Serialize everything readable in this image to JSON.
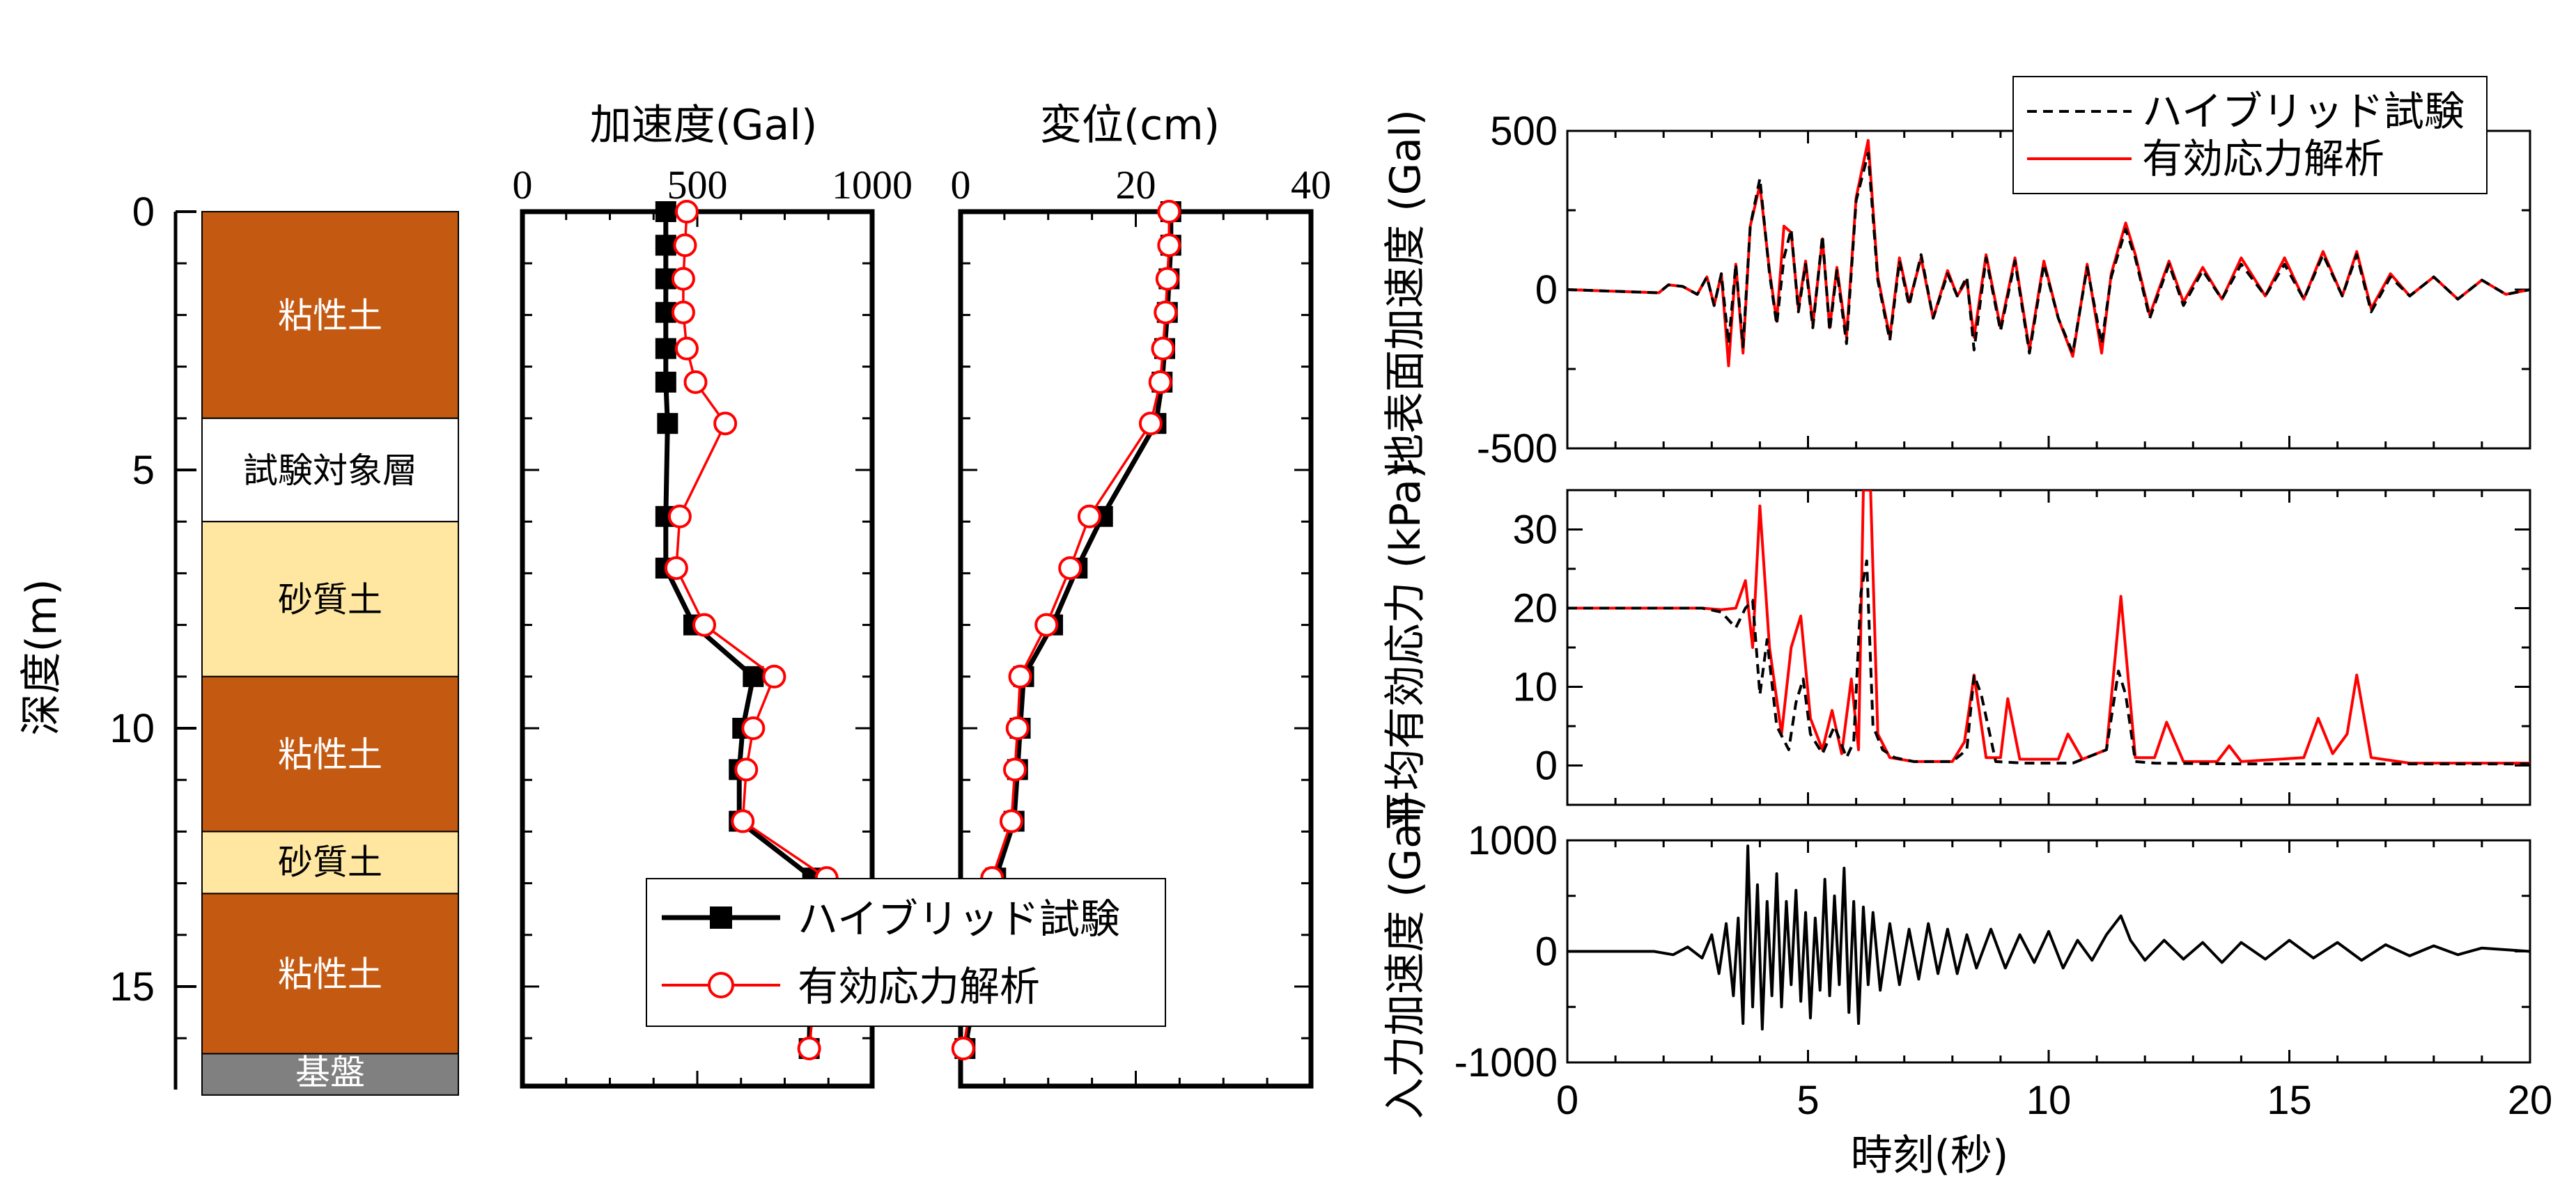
{
  "colors": {
    "hybrid": "#000000",
    "effective": "#ff0000",
    "clay": "#c45a12",
    "sand": "#ffe7a1",
    "target": "#ffffff",
    "base": "#808080"
  },
  "soil_column": {
    "depth_label": "深度(m)",
    "depth_ticks": [
      "0",
      "5",
      "10",
      "15"
    ],
    "layers": [
      {
        "name": "粘性土",
        "kind": "clay",
        "top": 0,
        "bottom": 4.0
      },
      {
        "name": "試験対象層",
        "kind": "target",
        "top": 4.0,
        "bottom": 6.0
      },
      {
        "name": "砂質土",
        "kind": "sand",
        "top": 6.0,
        "bottom": 9.0
      },
      {
        "name": "粘性土",
        "kind": "clay",
        "top": 9.0,
        "bottom": 12.0
      },
      {
        "name": "砂質土",
        "kind": "sand",
        "top": 12.0,
        "bottom": 13.2
      },
      {
        "name": "粘性土",
        "kind": "clay",
        "top": 13.2,
        "bottom": 16.3
      },
      {
        "name": "基盤",
        "kind": "base",
        "top": 16.3,
        "bottom": 17.1
      }
    ]
  },
  "legend_profile": {
    "hybrid": "ハイブリッド試験",
    "effective": "有効応力解析"
  },
  "legend_timehist": {
    "hybrid": "ハイブリッド試験",
    "effective": "有効応力解析"
  },
  "chart_data": [
    {
      "type": "line",
      "title": "加速度(Gal)",
      "xlim": [
        0,
        1000
      ],
      "xticks": [
        "0",
        "500",
        "1000"
      ],
      "ylim": [
        0,
        17
      ],
      "series": [
        {
          "name": "ハイブリッド試験",
          "x": [
            410,
            410,
            410,
            410,
            410,
            410,
            415,
            410,
            410,
            490,
            660,
            630,
            620,
            620,
            830,
            820
          ],
          "y": [
            0.0,
            0.65,
            1.3,
            1.95,
            2.65,
            3.3,
            4.1,
            5.9,
            6.9,
            8.0,
            9.0,
            10.0,
            10.8,
            11.8,
            12.9,
            16.2
          ]
        },
        {
          "name": "有効応力解析",
          "x": [
            470,
            465,
            460,
            460,
            470,
            495,
            580,
            450,
            440,
            520,
            720,
            660,
            640,
            630,
            870,
            820
          ],
          "y": [
            0.0,
            0.65,
            1.3,
            1.95,
            2.65,
            3.3,
            4.1,
            5.9,
            6.9,
            8.0,
            9.0,
            10.0,
            10.8,
            11.8,
            12.9,
            16.2
          ]
        }
      ]
    },
    {
      "type": "line",
      "title": "変位(cm)",
      "xlim": [
        0,
        40
      ],
      "xticks": [
        "0",
        "20",
        "40"
      ],
      "ylim": [
        0,
        17
      ],
      "series": [
        {
          "name": "ハイブリッド試験",
          "x": [
            24,
            24,
            23.8,
            23.6,
            23.3,
            23.0,
            22.3,
            16.2,
            13.3,
            10.5,
            7.2,
            6.8,
            6.5,
            6.1,
            4.0,
            0.5
          ],
          "y": [
            0.0,
            0.65,
            1.3,
            1.95,
            2.65,
            3.3,
            4.1,
            5.9,
            6.9,
            8.0,
            9.0,
            10.0,
            10.8,
            11.8,
            12.9,
            16.2
          ]
        },
        {
          "name": "有効応力解析",
          "x": [
            23.8,
            23.8,
            23.6,
            23.4,
            23.1,
            22.8,
            21.7,
            14.7,
            12.5,
            9.8,
            6.8,
            6.5,
            6.2,
            5.8,
            3.6,
            0.3
          ],
          "y": [
            0.0,
            0.65,
            1.3,
            1.95,
            2.65,
            3.3,
            4.1,
            5.9,
            6.9,
            8.0,
            9.0,
            10.0,
            10.8,
            11.8,
            12.9,
            16.2
          ]
        }
      ]
    },
    {
      "type": "line",
      "ylabel": "地表面加速度 (Gal)",
      "xlim": [
        0,
        20
      ],
      "ylim": [
        -500,
        500
      ],
      "yticks": [
        "500",
        "0",
        "-500"
      ],
      "series": [
        {
          "name": "ハイブリッド試験",
          "t": [
            0,
            1.9,
            2.1,
            2.4,
            2.7,
            2.9,
            3.05,
            3.2,
            3.35,
            3.5,
            3.65,
            3.8,
            4.0,
            4.2,
            4.35,
            4.5,
            4.65,
            4.8,
            4.95,
            5.1,
            5.3,
            5.45,
            5.6,
            5.8,
            6.0,
            6.25,
            6.45,
            6.7,
            6.9,
            7.1,
            7.35,
            7.6,
            7.9,
            8.1,
            8.3,
            8.45,
            8.7,
            9.0,
            9.3,
            9.6,
            9.9,
            10.2,
            10.5,
            10.8,
            11.1,
            11.3,
            11.6,
            11.8,
            12.1,
            12.5,
            12.8,
            13.2,
            13.6,
            14.0,
            14.5,
            14.9,
            15.3,
            15.7,
            16.1,
            16.4,
            16.7,
            17.1,
            17.5,
            18.0,
            18.5,
            19.0,
            19.5,
            20
          ],
          "y": [
            0,
            -10,
            15,
            10,
            -15,
            40,
            -50,
            50,
            -170,
            80,
            -180,
            200,
            350,
            50,
            -110,
            100,
            190,
            -70,
            80,
            -120,
            170,
            -130,
            60,
            -170,
            280,
            430,
            30,
            -160,
            90,
            -50,
            110,
            -90,
            50,
            -20,
            40,
            -190,
            100,
            -130,
            90,
            -200,
            80,
            -90,
            -200,
            70,
            -170,
            40,
            190,
            100,
            -90,
            80,
            -50,
            60,
            -30,
            80,
            -20,
            80,
            -30,
            110,
            -20,
            110,
            -70,
            40,
            -20,
            40,
            -30,
            30,
            -15,
            0
          ]
        },
        {
          "name": "有効応力解析",
          "t": [
            0,
            1.9,
            2.1,
            2.4,
            2.7,
            2.9,
            3.05,
            3.2,
            3.35,
            3.5,
            3.65,
            3.8,
            4.0,
            4.2,
            4.35,
            4.5,
            4.65,
            4.8,
            4.95,
            5.1,
            5.3,
            5.45,
            5.6,
            5.8,
            6.0,
            6.25,
            6.45,
            6.7,
            6.9,
            7.1,
            7.35,
            7.6,
            7.9,
            8.1,
            8.3,
            8.45,
            8.7,
            9.0,
            9.3,
            9.6,
            9.9,
            10.2,
            10.5,
            10.8,
            11.1,
            11.3,
            11.6,
            11.8,
            12.1,
            12.5,
            12.8,
            13.2,
            13.6,
            14.0,
            14.5,
            14.9,
            15.3,
            15.7,
            16.1,
            16.4,
            16.7,
            17.1,
            17.5,
            18.0,
            18.5,
            19.0,
            19.5,
            20
          ],
          "y": [
            0,
            -10,
            15,
            10,
            -15,
            40,
            -50,
            50,
            -240,
            80,
            -200,
            200,
            330,
            60,
            -100,
            200,
            180,
            -60,
            90,
            -110,
            160,
            -120,
            70,
            -150,
            290,
            470,
            40,
            -150,
            100,
            -40,
            100,
            -90,
            60,
            -20,
            30,
            -150,
            110,
            -120,
            100,
            -190,
            90,
            -90,
            -210,
            80,
            -200,
            50,
            210,
            110,
            -80,
            90,
            -40,
            70,
            -30,
            100,
            -20,
            100,
            -30,
            120,
            -20,
            120,
            -60,
            50,
            -20,
            40,
            -30,
            30,
            -15,
            0
          ]
        }
      ]
    },
    {
      "type": "line",
      "ylabel": "平均有効応力 (kPa)",
      "xlim": [
        0,
        20
      ],
      "ylim": [
        -5,
        35
      ],
      "yticks": [
        "30",
        "20",
        "10",
        "0"
      ],
      "series": [
        {
          "name": "ハイブリッド試験",
          "t": [
            0,
            2.8,
            3.2,
            3.5,
            3.7,
            3.85,
            4.0,
            4.15,
            4.35,
            4.6,
            4.75,
            4.9,
            5.05,
            5.3,
            5.55,
            5.8,
            5.95,
            6.1,
            6.22,
            6.35,
            6.55,
            6.8,
            7.2,
            8.0,
            8.3,
            8.45,
            8.6,
            8.9,
            9.5,
            10.5,
            11.2,
            11.45,
            11.6,
            11.8,
            12.2,
            14,
            20
          ],
          "y": [
            20,
            20,
            19.5,
            17.5,
            20,
            21,
            9,
            16,
            5,
            2,
            8,
            11,
            4,
            1.5,
            5,
            1,
            3,
            22,
            26,
            5,
            2,
            1,
            0.5,
            0.5,
            2,
            11.5,
            9,
            0.5,
            0.3,
            0.3,
            2,
            12,
            9,
            0.5,
            0.3,
            0.2,
            0.2
          ]
        },
        {
          "name": "有効応力解析",
          "t": [
            0,
            2.8,
            3.2,
            3.5,
            3.7,
            3.85,
            4.0,
            4.2,
            4.45,
            4.65,
            4.85,
            5.05,
            5.3,
            5.5,
            5.7,
            5.9,
            6.05,
            6.15,
            6.3,
            6.45,
            6.7,
            7.2,
            8.0,
            8.25,
            8.45,
            8.7,
            9.0,
            9.15,
            9.4,
            10.2,
            10.4,
            10.7,
            11.2,
            11.5,
            11.8,
            12.2,
            12.45,
            12.8,
            13.5,
            13.75,
            14.0,
            15.3,
            15.6,
            15.9,
            16.2,
            16.4,
            16.7,
            17.5,
            20
          ],
          "y": [
            20,
            20,
            19.8,
            20,
            23.5,
            15,
            33,
            15,
            4,
            15,
            19,
            6,
            2,
            7,
            1.5,
            11,
            2,
            35,
            35,
            4,
            1,
            0.5,
            0.5,
            3,
            11.5,
            1,
            1,
            8.5,
            0.8,
            0.8,
            4,
            0.8,
            2,
            21.5,
            1,
            1,
            5.5,
            0.5,
            0.5,
            2.5,
            0.5,
            1,
            6,
            1.5,
            4,
            11.5,
            1,
            0.3,
            0.3
          ]
        }
      ]
    },
    {
      "type": "line",
      "ylabel": "入力加速度 (Gal)",
      "xlabel": "時刻(秒)",
      "xlim": [
        0,
        20
      ],
      "xticks": [
        "0",
        "5",
        "10",
        "15",
        "20"
      ],
      "ylim": [
        -1000,
        1000
      ],
      "yticks": [
        "1000",
        "0",
        "-1000"
      ],
      "series": [
        {
          "name": "入力",
          "t": [
            0,
            1.8,
            2.2,
            2.5,
            2.8,
            3.0,
            3.15,
            3.3,
            3.45,
            3.55,
            3.65,
            3.75,
            3.85,
            3.95,
            4.05,
            4.15,
            4.25,
            4.35,
            4.45,
            4.55,
            4.65,
            4.75,
            4.85,
            4.95,
            5.05,
            5.15,
            5.25,
            5.35,
            5.45,
            5.55,
            5.65,
            5.75,
            5.85,
            5.95,
            6.05,
            6.15,
            6.25,
            6.35,
            6.5,
            6.7,
            6.9,
            7.1,
            7.3,
            7.5,
            7.7,
            7.9,
            8.1,
            8.3,
            8.5,
            8.8,
            9.1,
            9.4,
            9.7,
            10.0,
            10.3,
            10.6,
            10.9,
            11.2,
            11.5,
            11.7,
            12.0,
            12.4,
            12.8,
            13.2,
            13.6,
            14.0,
            14.5,
            15.0,
            15.5,
            16.0,
            16.5,
            17.0,
            17.5,
            18.0,
            18.5,
            19.0,
            20
          ],
          "y": [
            0,
            0,
            -30,
            40,
            -60,
            150,
            -200,
            250,
            -400,
            300,
            -650,
            950,
            -500,
            600,
            -700,
            450,
            -400,
            700,
            -500,
            450,
            -300,
            550,
            -450,
            350,
            -600,
            300,
            -350,
            650,
            -400,
            500,
            -300,
            750,
            -550,
            450,
            -650,
            400,
            -300,
            350,
            -350,
            250,
            -300,
            200,
            -250,
            250,
            -200,
            200,
            -200,
            150,
            -150,
            200,
            -150,
            150,
            -100,
            180,
            -150,
            100,
            -80,
            150,
            320,
            100,
            -80,
            100,
            -70,
            80,
            -100,
            80,
            -70,
            100,
            -60,
            80,
            -80,
            60,
            -40,
            50,
            -30,
            30,
            0
          ]
        }
      ]
    }
  ]
}
